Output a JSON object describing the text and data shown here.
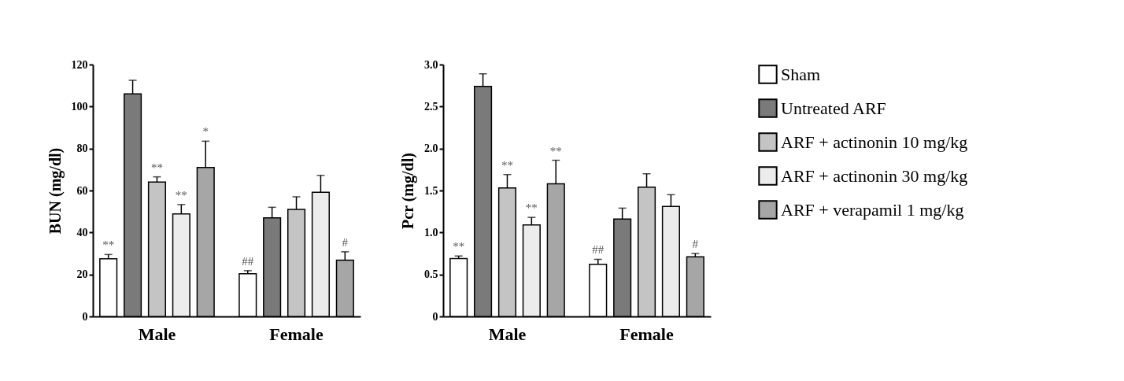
{
  "chart_data": [
    {
      "type": "bar",
      "ylabel": "BUN (mg/dl)",
      "categories": [
        "Male",
        "Female"
      ],
      "ylim": [
        0,
        120
      ],
      "yticks": [
        0,
        20,
        40,
        60,
        80,
        100,
        120
      ],
      "grid": false,
      "series": [
        {
          "color": "#ffffff",
          "values": [
            27.5,
            20.3
          ],
          "errors": [
            2,
            1.5
          ],
          "value_labels": [
            "**",
            "##"
          ]
        },
        {
          "color": "#7a7a7a",
          "values": [
            106,
            47
          ],
          "errors": [
            6.5,
            5
          ],
          "value_labels": [
            null,
            null
          ]
        },
        {
          "color": "#c4c4c4",
          "values": [
            64,
            51
          ],
          "errors": [
            2.5,
            6
          ],
          "value_labels": [
            "**",
            null
          ]
        },
        {
          "color": "#ececec",
          "values": [
            48.8,
            59.2
          ],
          "errors": [
            4.5,
            8
          ],
          "value_labels": [
            "**",
            null
          ]
        },
        {
          "color": "#a6a6a6",
          "values": [
            71,
            26.8
          ],
          "errors": [
            12.5,
            4
          ],
          "value_labels": [
            "*",
            "#"
          ]
        }
      ]
    },
    {
      "type": "bar",
      "ylabel": "Pcr (mg/dl)",
      "categories": [
        "Male",
        "Female"
      ],
      "ylim": [
        0,
        3
      ],
      "yticks": [
        0,
        {
          "value": 0.5,
          "label": "0.5"
        },
        {
          "value": 1,
          "label": "1.0"
        },
        {
          "value": 1.5,
          "label": "1.5"
        },
        {
          "value": 2,
          "label": "2.0"
        },
        {
          "value": 2.5,
          "label": "2.5"
        },
        {
          "value": 3,
          "label": "3.0"
        }
      ],
      "grid": false,
      "legend": "right",
      "series": [
        {
          "name": "Sham",
          "color": "#ffffff",
          "values": [
            0.69,
            0.62
          ],
          "errors": [
            0.03,
            0.06
          ],
          "value_labels": [
            "**",
            "##"
          ]
        },
        {
          "name": "Untreated ARF",
          "color": "#7a7a7a",
          "values": [
            2.74,
            1.16
          ],
          "errors": [
            0.15,
            0.13
          ],
          "value_labels": [
            null,
            null
          ]
        },
        {
          "name": "ARF + actinonin 10 mg/kg",
          "color": "#c4c4c4",
          "values": [
            1.53,
            1.54
          ],
          "errors": [
            0.16,
            0.16
          ],
          "value_labels": [
            "**",
            null
          ]
        },
        {
          "name": "ARF + actinonin 30 mg/kg",
          "color": "#ececec",
          "values": [
            1.09,
            1.31
          ],
          "errors": [
            0.09,
            0.14
          ],
          "value_labels": [
            "**",
            null
          ]
        },
        {
          "name": "ARF + verapamil 1 mg/kg",
          "color": "#a6a6a6",
          "values": [
            1.58,
            0.71
          ],
          "errors": [
            0.28,
            0.04
          ],
          "value_labels": [
            "**",
            "#"
          ]
        }
      ]
    }
  ]
}
